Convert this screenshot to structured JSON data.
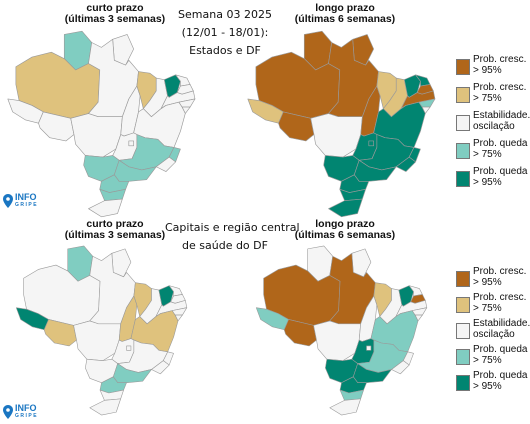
{
  "colors": {
    "prob_cresc_95": "#b0661a",
    "prob_cresc_75": "#dfc27d",
    "estabilidade": "#f5f5f5",
    "prob_queda_75": "#80cdc1",
    "prob_queda_95": "#018571",
    "border": "#9a9a9a",
    "logo": "#1a76c2"
  },
  "top": {
    "center_title": [
      "Semana 03 2025",
      "(12/01 - 18/01):",
      "Estados e DF"
    ],
    "left_header": [
      "curto prazo",
      "(últimas 3 semanas)"
    ],
    "right_header": [
      "longo prazo",
      "(últimas 6 semanas)"
    ]
  },
  "bottom": {
    "center_title": [
      "Capitais e região central",
      "de saúde do DF"
    ],
    "left_header": [
      "curto prazo",
      "(últimas 3 semanas)"
    ],
    "right_header": [
      "longo prazo",
      "(últimas 6 semanas)"
    ]
  },
  "legend": [
    {
      "key": "prob_cresc_95",
      "label": "Prob. cresc.\n> 95%"
    },
    {
      "key": "prob_cresc_75",
      "label": "Prob. cresc.\n> 75%"
    },
    {
      "key": "estabilidade",
      "label": "Estabilidade./\noscilação"
    },
    {
      "key": "prob_queda_75",
      "label": "Prob. queda\n> 75%"
    },
    {
      "key": "prob_queda_95",
      "label": "Prob. queda\n> 95%"
    }
  ],
  "logo": {
    "line1": "INFO",
    "line2": "GRIPE",
    "icon": "location-pin-icon"
  },
  "maps": {
    "states_short": {
      "RR": "prob_queda_75",
      "AM": "prob_cresc_75",
      "MA": "prob_cresc_75",
      "CE": "prob_queda_95",
      "ES": "prob_queda_75",
      "MG": "prob_queda_75",
      "MS": "prob_queda_75",
      "SP": "prob_queda_75",
      "PR": "prob_queda_75",
      "SC": "prob_queda_75"
    },
    "states_long": {
      "AM": "prob_cresc_95",
      "PA": "prob_cresc_95",
      "RR": "prob_cresc_95",
      "AP": "prob_cresc_95",
      "AC": "prob_cresc_75",
      "RO": "prob_cresc_95",
      "MA": "prob_cresc_75",
      "PI": "prob_cresc_75",
      "TO": "prob_cresc_95",
      "CE": "prob_queda_95",
      "RN": "prob_queda_95",
      "PB": "prob_cresc_95",
      "PE": "prob_cresc_95",
      "AL": "prob_queda_75",
      "BA": "prob_queda_95",
      "MG": "prob_queda_95",
      "ES": "prob_queda_95",
      "RJ": "prob_queda_95",
      "SP": "prob_queda_95",
      "GO": "prob_queda_95",
      "DF": "prob_queda_95",
      "MS": "prob_queda_95",
      "PR": "prob_queda_95",
      "SC": "prob_queda_95",
      "RS": "prob_queda_95"
    },
    "capitals_short": {
      "RR": "prob_queda_75",
      "AC": "prob_queda_95",
      "RO": "prob_cresc_75",
      "MA": "prob_cresc_75",
      "CE": "prob_queda_95",
      "BA": "prob_cresc_75",
      "TO": "prob_cresc_75",
      "SP": "prob_queda_75",
      "PR": "prob_queda_75"
    },
    "capitals_long": {
      "AM": "prob_cresc_95",
      "PA": "prob_cresc_95",
      "RO": "prob_cresc_95",
      "AC": "prob_queda_75",
      "MA": "prob_cresc_75",
      "CE": "prob_queda_95",
      "PB": "prob_cresc_95",
      "BA": "prob_queda_75",
      "MG": "prob_queda_75",
      "GO": "prob_queda_95",
      "MS": "prob_queda_95",
      "SP": "prob_queda_95",
      "PR": "prob_queda_95",
      "SC": "prob_queda_75"
    }
  }
}
